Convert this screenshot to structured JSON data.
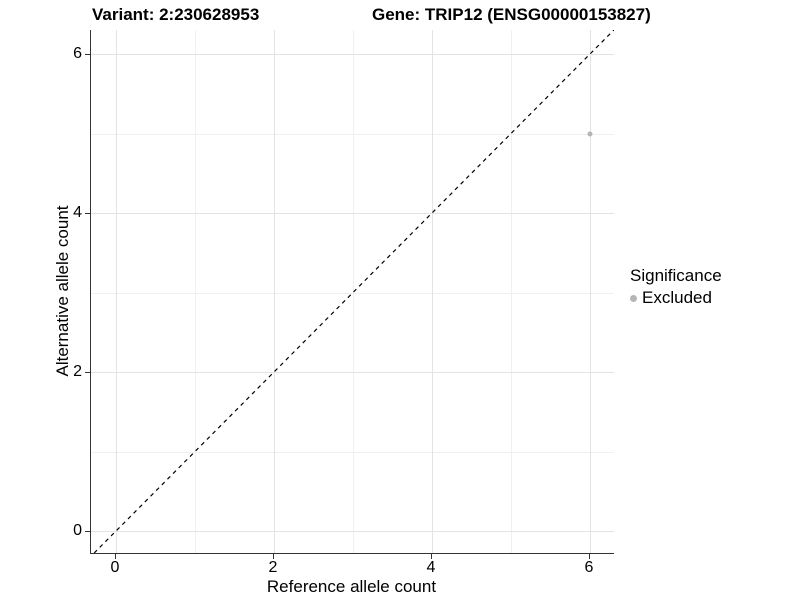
{
  "chart_data": {
    "type": "scatter",
    "title_left": "Variant: 2:230628953",
    "title_right": "Gene: TRIP12 (ENSG00000153827)",
    "xlabel": "Reference allele count",
    "ylabel": "Alternative allele count",
    "x_ticks": [
      0,
      2,
      4,
      6
    ],
    "y_ticks": [
      0,
      2,
      4,
      6
    ],
    "xlim": [
      -0.32,
      6.3
    ],
    "ylim": [
      -0.28,
      6.3
    ],
    "grid": true,
    "series": [
      {
        "name": "Excluded",
        "color": "#b5b5b5",
        "points": [
          {
            "x": 6,
            "y": 5
          }
        ]
      }
    ],
    "reference_line": {
      "type": "identity",
      "style": "dashed",
      "color": "#000000"
    },
    "legend": {
      "title": "Significance",
      "position": "right",
      "entries": [
        {
          "label": "Excluded",
          "color": "#b5b5b5"
        }
      ]
    },
    "colors": {
      "grid_major": "#e3e3e3",
      "grid_minor": "#f0f0f0",
      "axis_line": "#333333",
      "background": "#ffffff"
    }
  }
}
